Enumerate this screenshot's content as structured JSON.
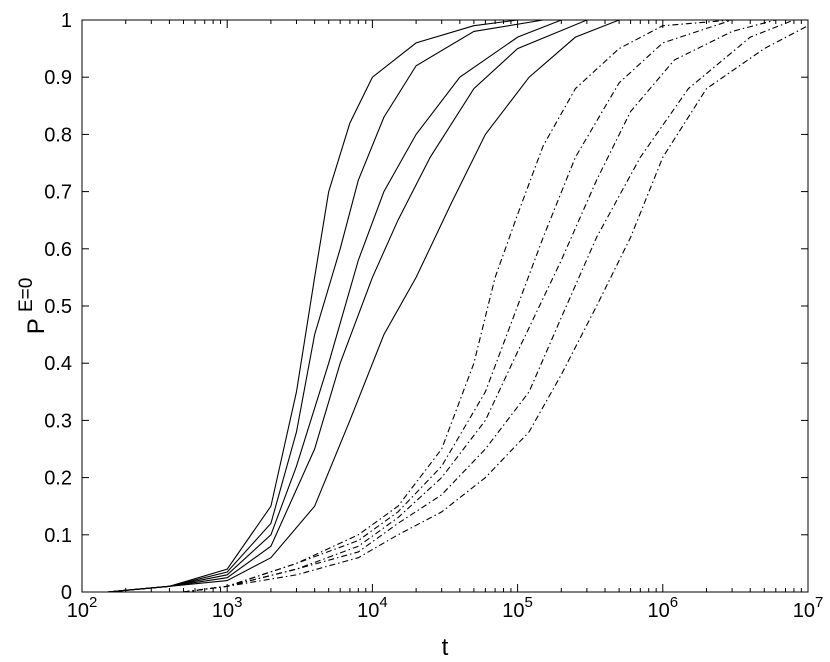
{
  "chart_data": {
    "type": "line",
    "xscale": "log",
    "xlim": [
      100,
      10000000
    ],
    "ylim": [
      0,
      1
    ],
    "grid": false,
    "xlabel": "t",
    "ylabel": {
      "base": "P",
      "superscript": "E=0"
    },
    "xticks": [
      {
        "base": "10",
        "exp": "2"
      },
      {
        "base": "10",
        "exp": "3"
      },
      {
        "base": "10",
        "exp": "4"
      },
      {
        "base": "10",
        "exp": "5"
      },
      {
        "base": "10",
        "exp": "6"
      },
      {
        "base": "10",
        "exp": "7"
      }
    ],
    "yticks": [
      "0",
      "0.1",
      "0.2",
      "0.3",
      "0.4",
      "0.5",
      "0.6",
      "0.7",
      "0.8",
      "0.9",
      "1"
    ],
    "series": [
      {
        "style": "solid",
        "points": [
          [
            150,
            0
          ],
          [
            400,
            0.01
          ],
          [
            1000,
            0.04
          ],
          [
            2000,
            0.15
          ],
          [
            3000,
            0.35
          ],
          [
            4000,
            0.55
          ],
          [
            5000,
            0.7
          ],
          [
            7000,
            0.82
          ],
          [
            10000,
            0.9
          ],
          [
            20000,
            0.96
          ],
          [
            50000,
            0.99
          ],
          [
            100000,
            1
          ],
          [
            10000000,
            1
          ]
        ]
      },
      {
        "style": "solid",
        "points": [
          [
            150,
            0
          ],
          [
            400,
            0.01
          ],
          [
            1000,
            0.035
          ],
          [
            2000,
            0.12
          ],
          [
            3000,
            0.28
          ],
          [
            4000,
            0.45
          ],
          [
            6000,
            0.6
          ],
          [
            8000,
            0.72
          ],
          [
            12000,
            0.83
          ],
          [
            20000,
            0.92
          ],
          [
            50000,
            0.98
          ],
          [
            150000,
            1
          ],
          [
            10000000,
            1
          ]
        ]
      },
      {
        "style": "solid",
        "points": [
          [
            150,
            0
          ],
          [
            400,
            0.01
          ],
          [
            1000,
            0.03
          ],
          [
            2000,
            0.1
          ],
          [
            3000,
            0.22
          ],
          [
            5000,
            0.4
          ],
          [
            8000,
            0.58
          ],
          [
            12000,
            0.7
          ],
          [
            20000,
            0.8
          ],
          [
            40000,
            0.9
          ],
          [
            100000,
            0.97
          ],
          [
            200000,
            1
          ],
          [
            10000000,
            1
          ]
        ]
      },
      {
        "style": "solid",
        "points": [
          [
            150,
            0
          ],
          [
            400,
            0.01
          ],
          [
            1000,
            0.025
          ],
          [
            2000,
            0.08
          ],
          [
            4000,
            0.25
          ],
          [
            6000,
            0.4
          ],
          [
            10000,
            0.55
          ],
          [
            15000,
            0.65
          ],
          [
            25000,
            0.76
          ],
          [
            50000,
            0.88
          ],
          [
            100000,
            0.95
          ],
          [
            300000,
            1
          ],
          [
            10000000,
            1
          ]
        ]
      },
      {
        "style": "solid",
        "points": [
          [
            150,
            0
          ],
          [
            400,
            0.01
          ],
          [
            1000,
            0.02
          ],
          [
            2000,
            0.06
          ],
          [
            4000,
            0.15
          ],
          [
            7000,
            0.3
          ],
          [
            12000,
            0.45
          ],
          [
            20000,
            0.55
          ],
          [
            35000,
            0.68
          ],
          [
            60000,
            0.8
          ],
          [
            120000,
            0.9
          ],
          [
            250000,
            0.97
          ],
          [
            500000,
            1
          ],
          [
            10000000,
            1
          ]
        ]
      },
      {
        "style": "dashdot",
        "points": [
          [
            500,
            0
          ],
          [
            1000,
            0.01
          ],
          [
            3000,
            0.05
          ],
          [
            8000,
            0.1
          ],
          [
            15000,
            0.15
          ],
          [
            30000,
            0.25
          ],
          [
            50000,
            0.4
          ],
          [
            70000,
            0.55
          ],
          [
            100000,
            0.66
          ],
          [
            150000,
            0.78
          ],
          [
            250000,
            0.88
          ],
          [
            500000,
            0.95
          ],
          [
            1000000,
            0.99
          ],
          [
            3000000,
            1
          ],
          [
            10000000,
            1
          ]
        ]
      },
      {
        "style": "dashdot",
        "points": [
          [
            500,
            0
          ],
          [
            1000,
            0.01
          ],
          [
            3000,
            0.05
          ],
          [
            8000,
            0.09
          ],
          [
            15000,
            0.14
          ],
          [
            30000,
            0.22
          ],
          [
            60000,
            0.35
          ],
          [
            100000,
            0.5
          ],
          [
            150000,
            0.62
          ],
          [
            250000,
            0.76
          ],
          [
            500000,
            0.89
          ],
          [
            1000000,
            0.96
          ],
          [
            3000000,
            1
          ],
          [
            10000000,
            1
          ]
        ]
      },
      {
        "style": "dashdot",
        "points": [
          [
            500,
            0
          ],
          [
            1000,
            0.01
          ],
          [
            3000,
            0.04
          ],
          [
            8000,
            0.08
          ],
          [
            15000,
            0.13
          ],
          [
            30000,
            0.2
          ],
          [
            60000,
            0.3
          ],
          [
            100000,
            0.42
          ],
          [
            200000,
            0.58
          ],
          [
            350000,
            0.72
          ],
          [
            600000,
            0.84
          ],
          [
            1200000,
            0.93
          ],
          [
            3000000,
            0.98
          ],
          [
            6000000,
            1
          ],
          [
            10000000,
            1
          ]
        ]
      },
      {
        "style": "dashdot",
        "points": [
          [
            500,
            0
          ],
          [
            1000,
            0.01
          ],
          [
            3000,
            0.04
          ],
          [
            8000,
            0.07
          ],
          [
            15000,
            0.12
          ],
          [
            30000,
            0.17
          ],
          [
            60000,
            0.25
          ],
          [
            120000,
            0.35
          ],
          [
            200000,
            0.48
          ],
          [
            350000,
            0.62
          ],
          [
            700000,
            0.76
          ],
          [
            1500000,
            0.88
          ],
          [
            4000000,
            0.97
          ],
          [
            8000000,
            1
          ],
          [
            10000000,
            1
          ]
        ]
      },
      {
        "style": "dashdot",
        "points": [
          [
            500,
            0
          ],
          [
            1000,
            0.01
          ],
          [
            3000,
            0.03
          ],
          [
            8000,
            0.06
          ],
          [
            15000,
            0.1
          ],
          [
            30000,
            0.14
          ],
          [
            60000,
            0.2
          ],
          [
            120000,
            0.28
          ],
          [
            200000,
            0.38
          ],
          [
            350000,
            0.5
          ],
          [
            600000,
            0.62
          ],
          [
            1000000,
            0.76
          ],
          [
            2000000,
            0.88
          ],
          [
            5000000,
            0.95
          ],
          [
            10000000,
            0.99
          ]
        ]
      }
    ]
  }
}
